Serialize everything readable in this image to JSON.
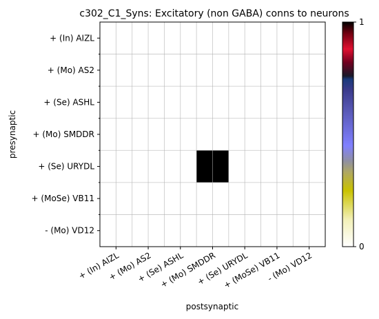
{
  "chart_data": {
    "type": "heatmap",
    "title": "c302_C1_Syns: Excitatory (non GABA) conns to neurons",
    "xlabel": "postsynaptic",
    "ylabel": "presynaptic",
    "x_labels": [
      "+ (In) AIZL",
      "+ (Mo) AS2",
      "+ (Se) ASHL",
      "+ (Mo) SMDDR",
      "+ (Se) URYDL",
      "+ (MoSe) VB11",
      "- (Mo) VD12"
    ],
    "y_labels": [
      "+ (In) AIZL",
      "+ (Mo) AS2",
      "+ (Se) ASHL",
      "+ (Mo) SMDDR",
      "+ (Se) URYDL",
      "+ (MoSe) VB11",
      "- (Mo) VD12"
    ],
    "values": [
      [
        0,
        0,
        0,
        0,
        0,
        0,
        0
      ],
      [
        0,
        0,
        0,
        0,
        0,
        0,
        0
      ],
      [
        0,
        0,
        0,
        0,
        0,
        0,
        0
      ],
      [
        0,
        0,
        0,
        0,
        0,
        0,
        0
      ],
      [
        0,
        0,
        0,
        1,
        0,
        0,
        0
      ],
      [
        0,
        0,
        0,
        0,
        0,
        0,
        0
      ],
      [
        0,
        0,
        0,
        0,
        0,
        0,
        0
      ]
    ],
    "grid": true,
    "colormap": "gist_stern_r",
    "colorbar": {
      "min": 0,
      "max": 1,
      "tick_labels": [
        "0",
        "1"
      ]
    }
  }
}
